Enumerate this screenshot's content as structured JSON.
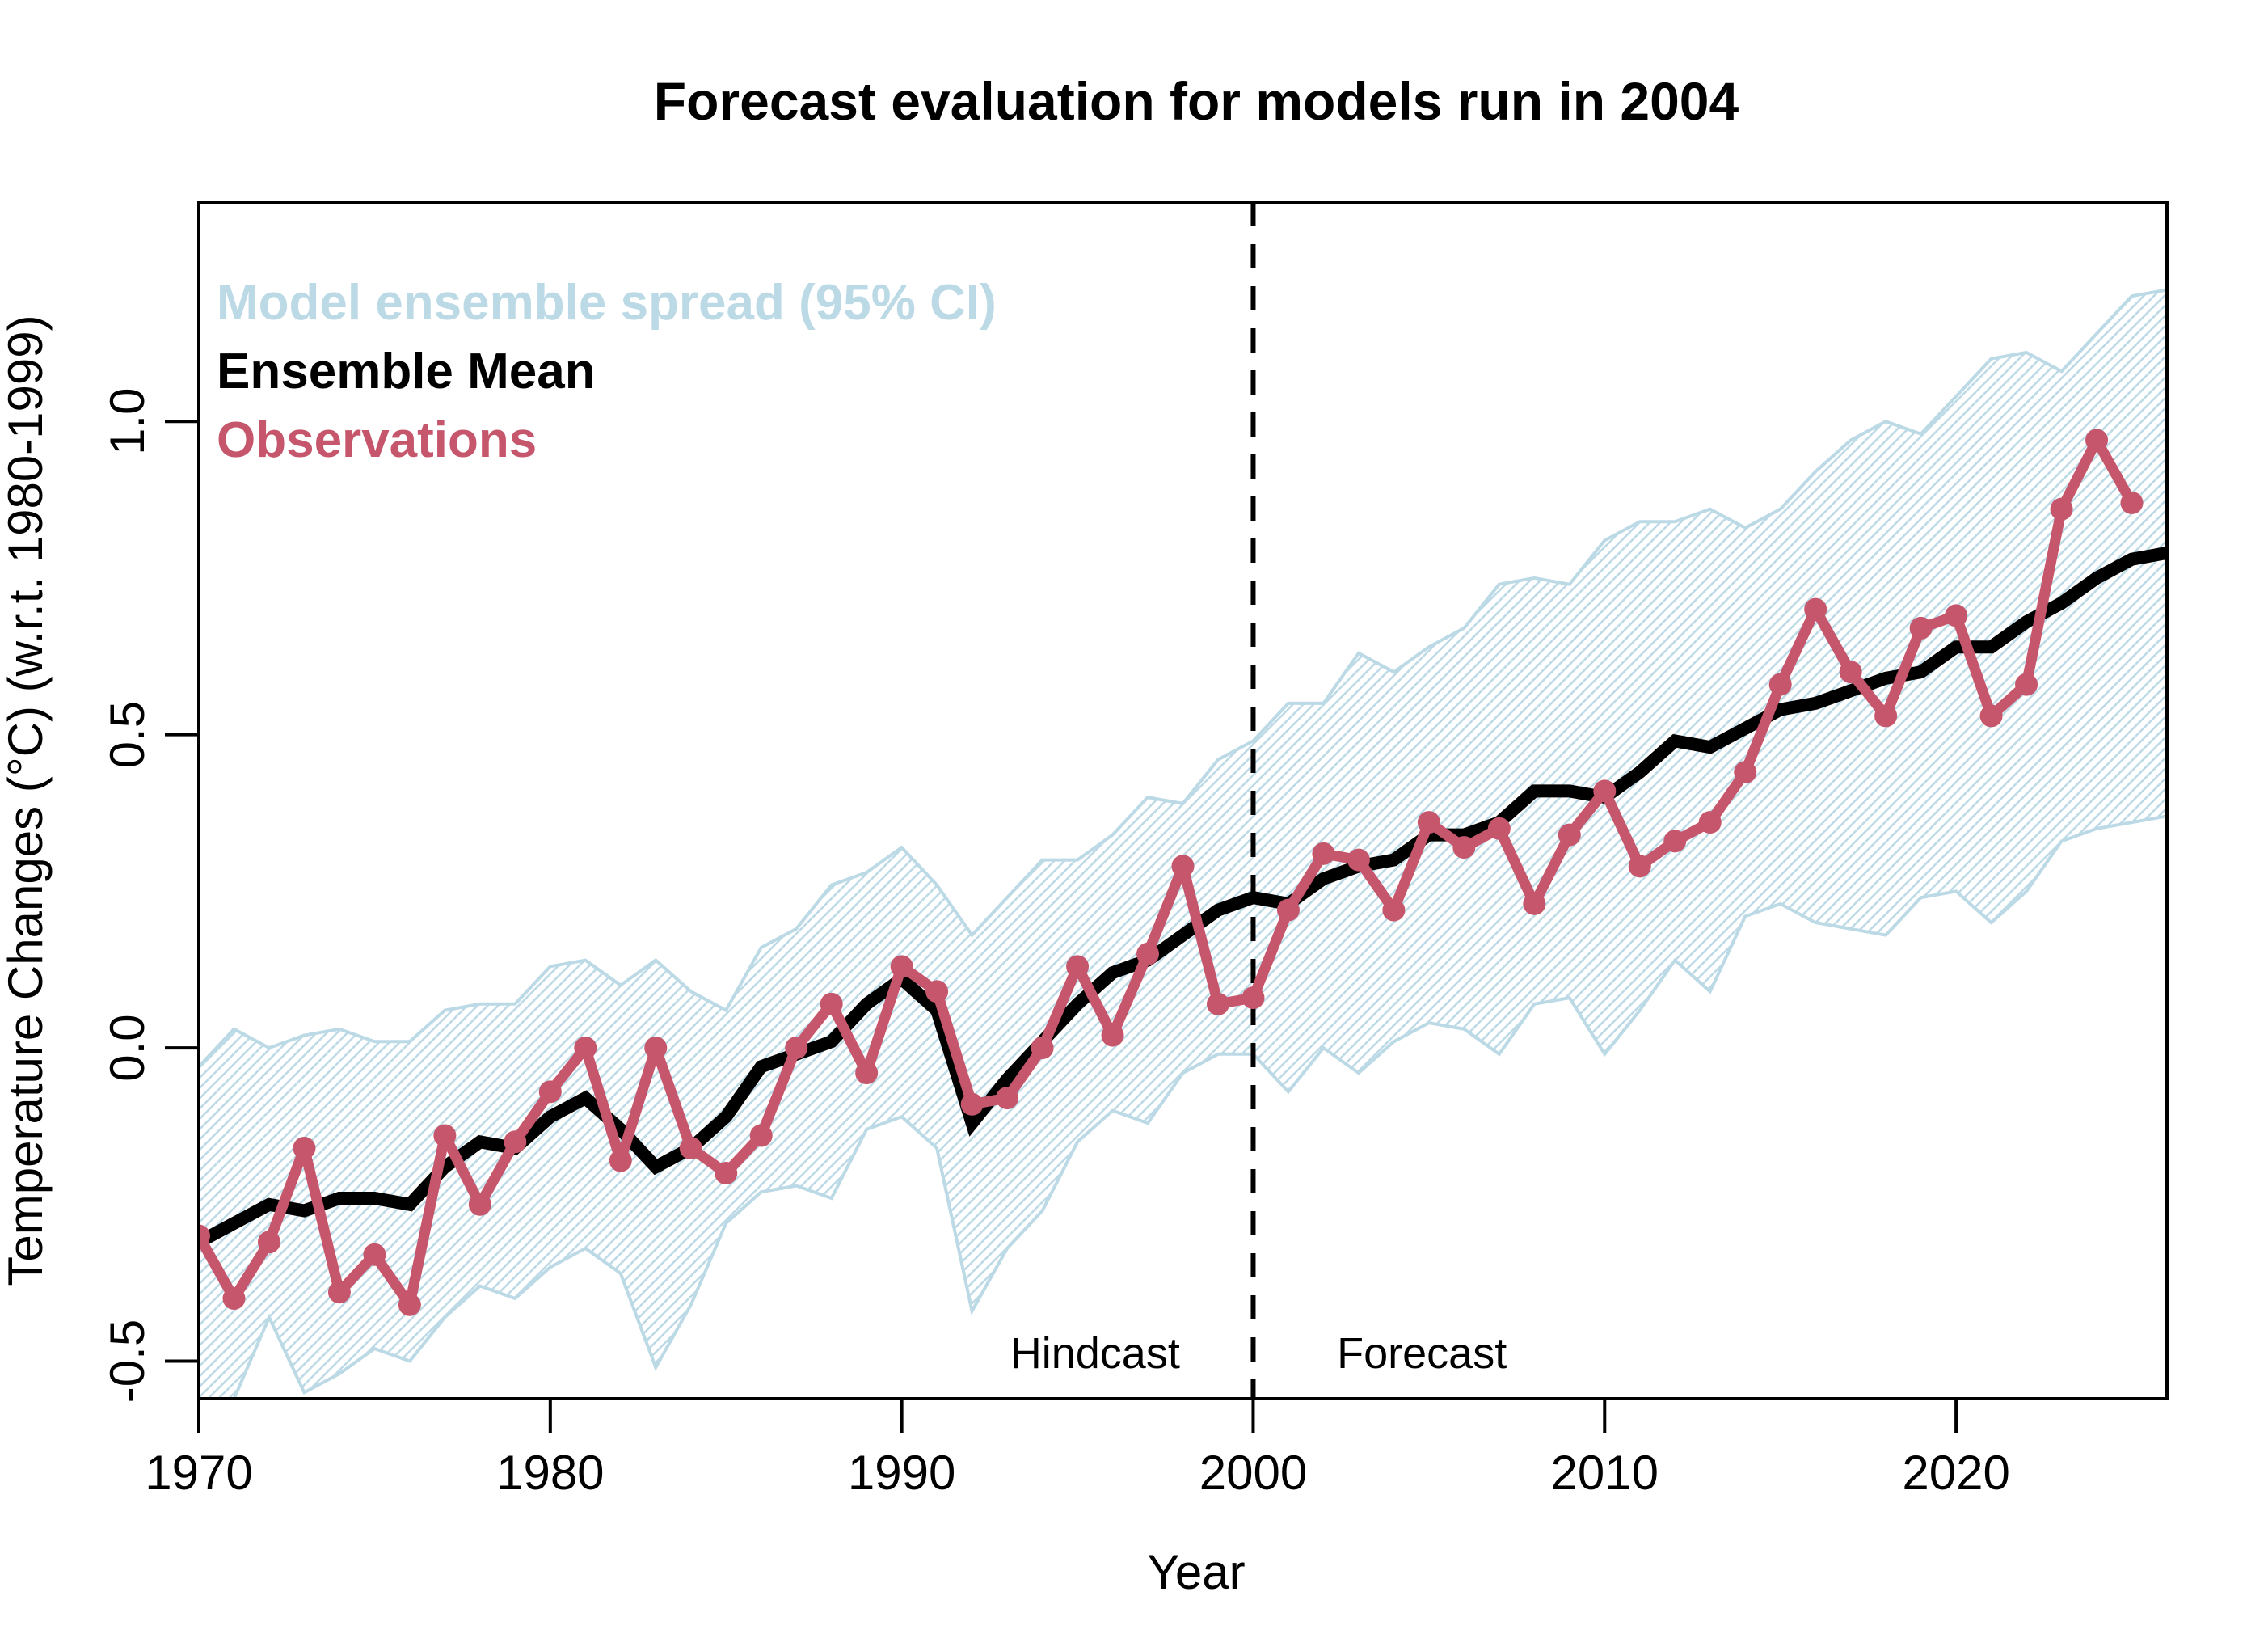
{
  "chart_data": {
    "type": "line",
    "title": "Forecast evaluation for models run in 2004",
    "xlabel": "Year",
    "ylabel": "Temperature Changes (°C) (w.r.t. 1980-1999)",
    "xlim": [
      1970,
      2026
    ],
    "ylim": [
      -0.56,
      1.35
    ],
    "x_ticks": [
      1970,
      1980,
      1990,
      2000,
      2010,
      2020
    ],
    "x_tick_labels": [
      "1970",
      "1980",
      "1990",
      "2000",
      "2010",
      "2020"
    ],
    "y_ticks": [
      -0.5,
      0.0,
      0.5,
      1.0
    ],
    "y_tick_labels": [
      "-0.5",
      "0.0",
      "0.5",
      "1.0"
    ],
    "grid": false,
    "legend": {
      "placement": "top-left",
      "entries": [
        {
          "label": "Model ensemble spread (95% CI)",
          "color": "#BCD9E6"
        },
        {
          "label": "Ensemble Mean",
          "color": "#000000"
        },
        {
          "label": "Observations",
          "color": "#C5566C"
        }
      ]
    },
    "vline": {
      "x": 2000,
      "style": "dashed",
      "color": "#000000"
    },
    "annotations": [
      {
        "text": "Hindcast",
        "x": 1995.5,
        "y": -0.485
      },
      {
        "text": "Forecast",
        "x": 2004.8,
        "y": -0.485
      }
    ],
    "band": {
      "name": "Model ensemble spread (95% CI)",
      "color": "#BCD9E6",
      "x": [
        1970,
        1971,
        1972,
        1973,
        1974,
        1975,
        1976,
        1977,
        1978,
        1979,
        1980,
        1981,
        1982,
        1983,
        1984,
        1985,
        1986,
        1987,
        1988,
        1989,
        1990,
        1991,
        1992,
        1993,
        1994,
        1995,
        1996,
        1997,
        1998,
        1999,
        2000,
        2001,
        2002,
        2003,
        2004,
        2005,
        2006,
        2007,
        2008,
        2009,
        2010,
        2011,
        2012,
        2013,
        2014,
        2015,
        2016,
        2017,
        2018,
        2019,
        2020,
        2021,
        2022,
        2023,
        2024,
        2025,
        2026
      ],
      "upper": [
        -0.03,
        0.03,
        0.0,
        0.02,
        0.03,
        0.01,
        0.01,
        0.06,
        0.07,
        0.07,
        0.13,
        0.14,
        0.1,
        0.14,
        0.09,
        0.06,
        0.16,
        0.19,
        0.26,
        0.28,
        0.32,
        0.26,
        0.18,
        0.24,
        0.3,
        0.3,
        0.34,
        0.4,
        0.39,
        0.46,
        0.49,
        0.55,
        0.55,
        0.63,
        0.6,
        0.64,
        0.67,
        0.74,
        0.75,
        0.74,
        0.81,
        0.84,
        0.84,
        0.86,
        0.83,
        0.86,
        0.92,
        0.97,
        1.0,
        0.98,
        1.04,
        1.1,
        1.11,
        1.08,
        1.14,
        1.2,
        1.21
      ],
      "lower": [
        -0.56,
        -0.56,
        -0.43,
        -0.55,
        -0.52,
        -0.48,
        -0.5,
        -0.43,
        -0.38,
        -0.4,
        -0.35,
        -0.32,
        -0.36,
        -0.51,
        -0.41,
        -0.28,
        -0.23,
        -0.22,
        -0.24,
        -0.13,
        -0.11,
        -0.16,
        -0.42,
        -0.32,
        -0.26,
        -0.15,
        -0.1,
        -0.12,
        -0.04,
        -0.01,
        -0.01,
        -0.07,
        0.0,
        -0.04,
        0.01,
        0.04,
        0.03,
        -0.01,
        0.07,
        0.08,
        -0.01,
        0.06,
        0.14,
        0.09,
        0.21,
        0.23,
        0.2,
        0.19,
        0.18,
        0.24,
        0.25,
        0.2,
        0.25,
        0.33,
        0.35,
        0.36,
        0.37
      ]
    },
    "series": [
      {
        "name": "Ensemble Mean",
        "color": "#000000",
        "x": [
          1970,
          1971,
          1972,
          1973,
          1974,
          1975,
          1976,
          1977,
          1978,
          1979,
          1980,
          1981,
          1982,
          1983,
          1984,
          1985,
          1986,
          1987,
          1988,
          1989,
          1990,
          1991,
          1992,
          1993,
          1994,
          1995,
          1996,
          1997,
          1998,
          1999,
          2000,
          2001,
          2002,
          2003,
          2004,
          2005,
          2006,
          2007,
          2008,
          2009,
          2010,
          2011,
          2012,
          2013,
          2014,
          2015,
          2016,
          2017,
          2018,
          2019,
          2020,
          2021,
          2022,
          2023,
          2024,
          2025,
          2026
        ],
        "values": [
          -0.31,
          -0.28,
          -0.25,
          -0.26,
          -0.24,
          -0.24,
          -0.25,
          -0.19,
          -0.15,
          -0.16,
          -0.11,
          -0.08,
          -0.13,
          -0.19,
          -0.16,
          -0.11,
          -0.03,
          -0.01,
          0.01,
          0.07,
          0.11,
          0.06,
          -0.12,
          -0.05,
          0.01,
          0.07,
          0.12,
          0.14,
          0.18,
          0.22,
          0.24,
          0.23,
          0.27,
          0.29,
          0.3,
          0.34,
          0.34,
          0.36,
          0.41,
          0.41,
          0.4,
          0.44,
          0.49,
          0.48,
          0.51,
          0.54,
          0.55,
          0.57,
          0.59,
          0.6,
          0.64,
          0.64,
          0.68,
          0.71,
          0.75,
          0.78,
          0.79
        ]
      },
      {
        "name": "Observations",
        "color": "#C5566C",
        "markers": true,
        "x": [
          1970,
          1971,
          1972,
          1973,
          1974,
          1975,
          1976,
          1977,
          1978,
          1979,
          1980,
          1981,
          1982,
          1983,
          1984,
          1985,
          1986,
          1987,
          1988,
          1989,
          1990,
          1991,
          1992,
          1993,
          1994,
          1995,
          1996,
          1997,
          1998,
          1999,
          2000,
          2001,
          2002,
          2003,
          2004,
          2005,
          2006,
          2007,
          2008,
          2009,
          2010,
          2011,
          2012,
          2013,
          2014,
          2015,
          2016,
          2017,
          2018,
          2019,
          2020,
          2021,
          2022,
          2023,
          2024,
          2025
        ],
        "values": [
          -0.3,
          -0.4,
          -0.31,
          -0.16,
          -0.39,
          -0.33,
          -0.41,
          -0.14,
          -0.25,
          -0.15,
          -0.07,
          0.0,
          -0.18,
          0.0,
          -0.16,
          -0.2,
          -0.14,
          0.0,
          0.07,
          -0.04,
          0.13,
          0.09,
          -0.09,
          -0.08,
          0.0,
          0.13,
          0.02,
          0.15,
          0.29,
          0.07,
          0.08,
          0.22,
          0.31,
          0.3,
          0.22,
          0.36,
          0.32,
          0.35,
          0.23,
          0.34,
          0.41,
          0.29,
          0.33,
          0.36,
          0.44,
          0.58,
          0.7,
          0.6,
          0.53,
          0.67,
          0.69,
          0.53,
          0.58,
          0.86,
          0.97,
          0.87
        ]
      }
    ]
  }
}
